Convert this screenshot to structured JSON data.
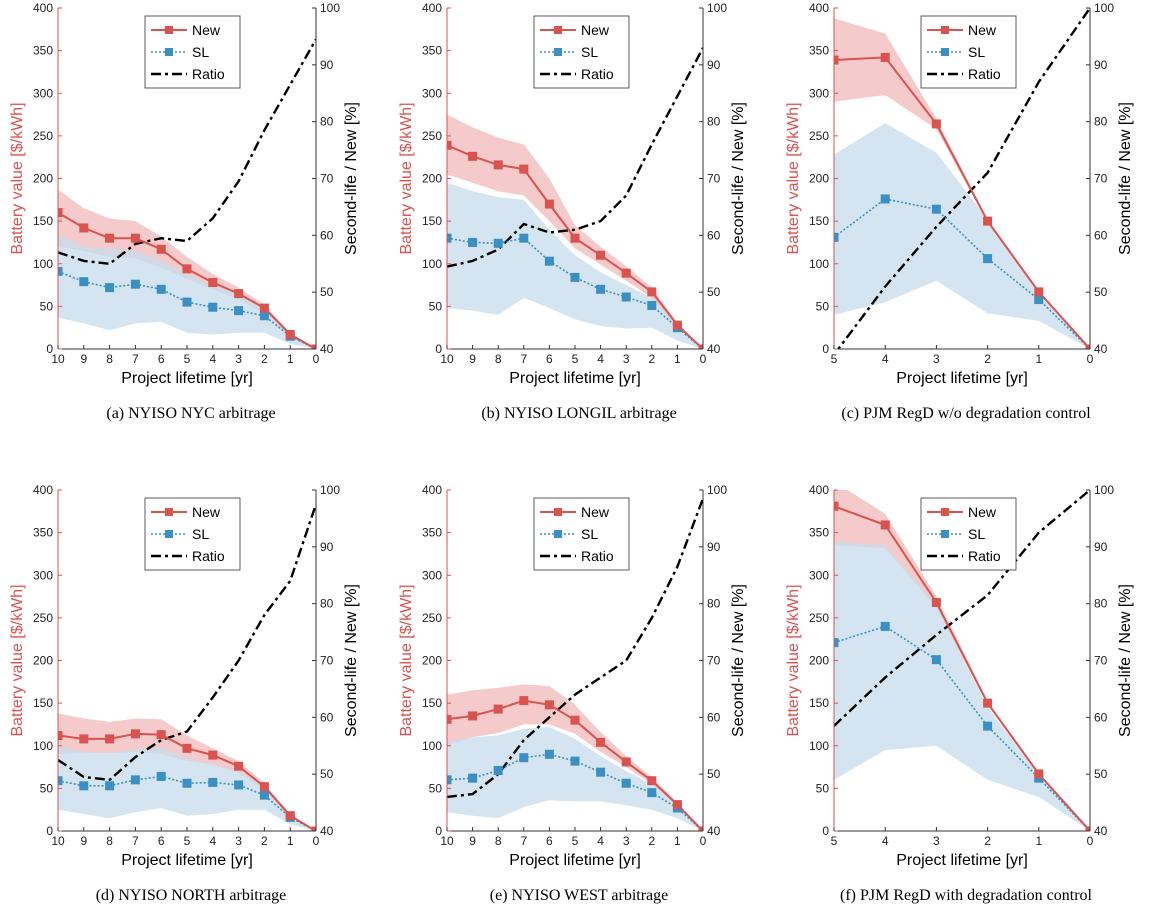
{
  "colors": {
    "new": "#d9534f",
    "sl": "#3b8fc2",
    "ratio": "#000000",
    "new_band": "#f2b8b8",
    "sl_band": "#c5dcec"
  },
  "left_axis": {
    "label": "Battery value [$/kWh]",
    "ticks": [
      "0",
      "50",
      "100",
      "150",
      "200",
      "250",
      "300",
      "350",
      "400"
    ],
    "range": [
      0,
      400
    ]
  },
  "right_axis": {
    "label": "Second-life / New [%]",
    "ticks": [
      "40",
      "50",
      "60",
      "70",
      "80",
      "90",
      "100"
    ],
    "range": [
      40,
      100
    ]
  },
  "x_axis": {
    "label": "Project lifetime [yr]"
  },
  "legend": {
    "new": "New",
    "sl": "SL",
    "ratio": "Ratio"
  },
  "chart_data": [
    {
      "type": "line",
      "caption": "(a) NYISO NYC arbitrage",
      "x": [
        10,
        9,
        8,
        7,
        6,
        5,
        4,
        3,
        2,
        1,
        0
      ],
      "xlim": [
        10,
        0
      ],
      "ylim": [
        0,
        400
      ],
      "y2lim": [
        40,
        100
      ],
      "grid": false,
      "legend": "top-center",
      "series": [
        {
          "name": "New",
          "axis": "left",
          "values": [
            160,
            142,
            130,
            130,
            117,
            94,
            78,
            65,
            48,
            17,
            0
          ],
          "band_low": [
            120,
            115,
            108,
            106,
            96,
            82,
            70,
            58,
            42,
            14,
            0
          ],
          "band_high": [
            187,
            165,
            153,
            150,
            132,
            108,
            88,
            72,
            52,
            19,
            0
          ]
        },
        {
          "name": "SL",
          "axis": "left",
          "values": [
            91,
            79,
            72,
            76,
            70,
            55,
            49,
            45,
            39,
            15,
            0
          ],
          "band_low": [
            37,
            30,
            22,
            30,
            32,
            19,
            17,
            19,
            19,
            6,
            0
          ],
          "band_high": [
            135,
            120,
            118,
            115,
            104,
            88,
            75,
            64,
            50,
            17,
            0
          ]
        },
        {
          "name": "Ratio",
          "axis": "right",
          "values": [
            57,
            55.5,
            55,
            58.5,
            59.5,
            59,
            63,
            69.5,
            78.5,
            86.5,
            94.5
          ]
        }
      ]
    },
    {
      "type": "line",
      "caption": "(b) NYISO LONGIL arbitrage",
      "x": [
        10,
        9,
        8,
        7,
        6,
        5,
        4,
        3,
        2,
        1,
        0
      ],
      "xlim": [
        10,
        0
      ],
      "ylim": [
        0,
        400
      ],
      "y2lim": [
        40,
        100
      ],
      "grid": false,
      "legend": "top-center",
      "series": [
        {
          "name": "New",
          "axis": "left",
          "values": [
            239,
            226,
            216,
            211,
            170,
            130,
            110,
            89,
            67,
            28,
            0
          ],
          "band_low": [
            205,
            195,
            185,
            180,
            150,
            118,
            99,
            80,
            60,
            25,
            0
          ],
          "band_high": [
            275,
            260,
            248,
            240,
            200,
            145,
            120,
            97,
            72,
            31,
            0
          ]
        },
        {
          "name": "SL",
          "axis": "left",
          "values": [
            130,
            125,
            124,
            130,
            103,
            84,
            70,
            61,
            51,
            25,
            0
          ],
          "band_low": [
            48,
            45,
            40,
            60,
            48,
            35,
            27,
            24,
            25,
            10,
            0
          ],
          "band_high": [
            195,
            185,
            178,
            175,
            140,
            110,
            90,
            75,
            60,
            27,
            0
          ]
        },
        {
          "name": "Ratio",
          "axis": "right",
          "values": [
            54.5,
            55.5,
            57.5,
            62,
            60.5,
            61,
            62.5,
            67,
            76,
            84.5,
            93
          ]
        }
      ]
    },
    {
      "type": "line",
      "caption": "(c) PJM RegD w/o degradation control",
      "x": [
        5,
        4,
        3,
        2,
        1,
        0
      ],
      "xlim": [
        5,
        0
      ],
      "ylim": [
        0,
        400
      ],
      "y2lim": [
        40,
        100
      ],
      "grid": false,
      "legend": "top-center",
      "series": [
        {
          "name": "New",
          "axis": "left",
          "values": [
            339,
            342,
            264,
            150,
            67,
            0
          ],
          "band_low": [
            290,
            298,
            258,
            148,
            66,
            0
          ],
          "band_high": [
            388,
            370,
            270,
            152,
            68,
            0
          ]
        },
        {
          "name": "SL",
          "axis": "left",
          "values": [
            131,
            176,
            164,
            106,
            58,
            0
          ],
          "band_low": [
            40,
            55,
            80,
            42,
            33,
            0
          ],
          "band_high": [
            228,
            265,
            230,
            152,
            66,
            0
          ]
        },
        {
          "name": "Ratio",
          "axis": "right",
          "values": [
            39,
            51,
            61.5,
            71,
            87,
            100
          ]
        }
      ]
    },
    {
      "type": "line",
      "caption": "(d) NYISO NORTH arbitrage",
      "x": [
        10,
        9,
        8,
        7,
        6,
        5,
        4,
        3,
        2,
        1,
        0
      ],
      "xlim": [
        10,
        0
      ],
      "ylim": [
        0,
        400
      ],
      "y2lim": [
        40,
        100
      ],
      "grid": false,
      "legend": "top-center",
      "series": [
        {
          "name": "New",
          "axis": "left",
          "values": [
            112,
            108,
            108,
            114,
            113,
            97,
            89,
            76,
            52,
            18,
            0
          ],
          "band_low": [
            90,
            92,
            91,
            93,
            90,
            82,
            78,
            68,
            48,
            16,
            0
          ],
          "band_high": [
            138,
            132,
            128,
            132,
            131,
            112,
            97,
            82,
            56,
            20,
            0
          ]
        },
        {
          "name": "SL",
          "axis": "left",
          "values": [
            59,
            53,
            53,
            60,
            64,
            56,
            57,
            54,
            42,
            16,
            0
          ],
          "band_low": [
            25,
            20,
            15,
            22,
            27,
            18,
            20,
            25,
            25,
            8,
            0
          ],
          "band_high": [
            100,
            93,
            91,
            96,
            98,
            85,
            78,
            70,
            52,
            18,
            0
          ]
        },
        {
          "name": "Ratio",
          "axis": "right",
          "values": [
            52.5,
            49.5,
            49,
            53,
            56,
            57.5,
            63.5,
            70,
            78,
            84,
            97.5
          ]
        }
      ]
    },
    {
      "type": "line",
      "caption": "(e) NYISO WEST arbitrage",
      "x": [
        10,
        9,
        8,
        7,
        6,
        5,
        4,
        3,
        2,
        1,
        0
      ],
      "xlim": [
        10,
        0
      ],
      "ylim": [
        0,
        400
      ],
      "y2lim": [
        40,
        100
      ],
      "grid": false,
      "legend": "top-center",
      "series": [
        {
          "name": "New",
          "axis": "left",
          "values": [
            131,
            135,
            143,
            153,
            148,
            130,
            104,
            81,
            59,
            31,
            0
          ],
          "band_low": [
            100,
            110,
            115,
            125,
            125,
            114,
            93,
            75,
            55,
            28,
            0
          ],
          "band_high": [
            160,
            165,
            168,
            172,
            170,
            148,
            116,
            88,
            63,
            33,
            0
          ]
        },
        {
          "name": "SL",
          "axis": "left",
          "values": [
            60,
            62,
            71,
            86,
            90,
            82,
            69,
            56,
            45,
            27,
            0
          ],
          "band_low": [
            22,
            18,
            15,
            28,
            36,
            35,
            35,
            30,
            25,
            15,
            0
          ],
          "band_high": [
            105,
            110,
            112,
            120,
            122,
            108,
            88,
            70,
            55,
            30,
            0
          ]
        },
        {
          "name": "Ratio",
          "axis": "right",
          "values": [
            46,
            46.5,
            50,
            56,
            60,
            64,
            67,
            70,
            77.5,
            86.5,
            98.5
          ]
        }
      ]
    },
    {
      "type": "line",
      "caption": "(f) PJM RegD with degradation control",
      "x": [
        5,
        4,
        3,
        2,
        1,
        0
      ],
      "xlim": [
        5,
        0
      ],
      "ylim": [
        0,
        400
      ],
      "y2lim": [
        40,
        100
      ],
      "grid": false,
      "legend": "top-center",
      "series": [
        {
          "name": "New",
          "axis": "left",
          "values": [
            381,
            359,
            268,
            150,
            67,
            0
          ],
          "band_low": [
            335,
            332,
            262,
            148,
            66,
            0
          ],
          "band_high": [
            410,
            372,
            275,
            152,
            68,
            0
          ]
        },
        {
          "name": "SL",
          "axis": "left",
          "values": [
            221,
            240,
            201,
            123,
            62,
            0
          ],
          "band_low": [
            60,
            95,
            100,
            60,
            40,
            0
          ],
          "band_high": [
            340,
            335,
            265,
            145,
            66,
            0
          ]
        },
        {
          "name": "Ratio",
          "axis": "right",
          "values": [
            58.5,
            67,
            74.5,
            81.5,
            92.5,
            100
          ]
        }
      ]
    }
  ]
}
